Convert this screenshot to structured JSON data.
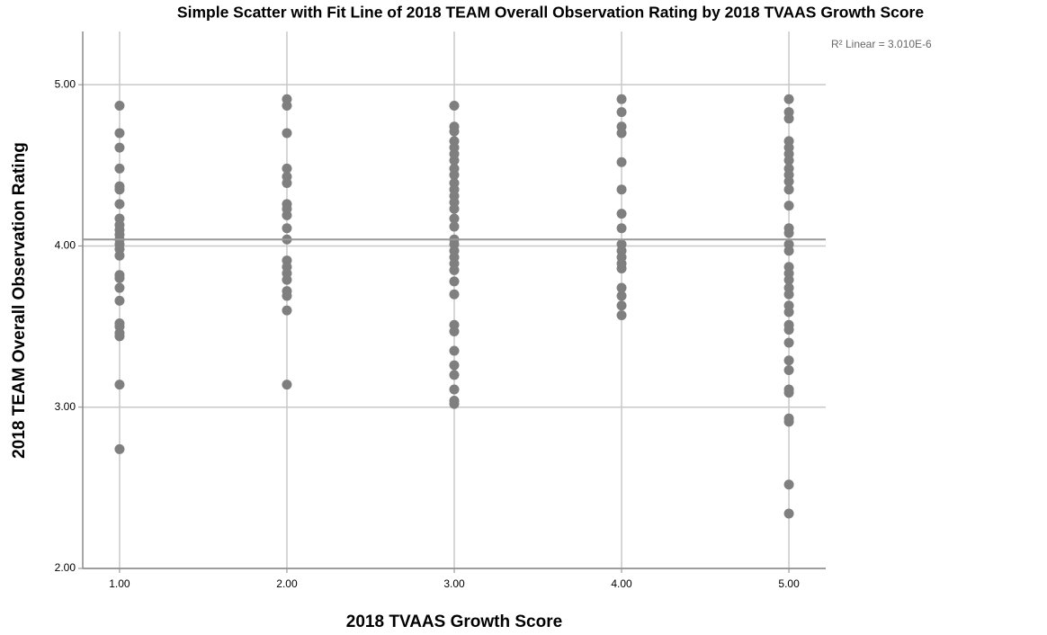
{
  "chart_data": {
    "type": "scatter",
    "title": "Simple Scatter with Fit Line of 2018 TEAM Overall Observation Rating by 2018 TVAAS Growth Score",
    "x_label": "2018 TVAAS Growth Score",
    "y_label": "2018 TEAM Overall Observation Rating",
    "annotation": "R² Linear = 3.010E-6",
    "color": "#7f7f7f",
    "grid": true,
    "xlim": [
      0.78,
      5.22
    ],
    "ylim": [
      2,
      5.33
    ],
    "xticks": [
      {
        "value": 1,
        "label": "1.00"
      },
      {
        "value": 2,
        "label": "2.00"
      },
      {
        "value": 3,
        "label": "3.00"
      },
      {
        "value": 4,
        "label": "4.00"
      },
      {
        "value": 5,
        "label": "5.00"
      }
    ],
    "yticks": [
      {
        "value": 2,
        "label": "2.00"
      },
      {
        "value": 3,
        "label": "3.00"
      },
      {
        "value": 4,
        "label": "4.00"
      },
      {
        "value": 5,
        "label": "5.00"
      }
    ],
    "fit_line": {
      "x": [
        0.78,
        5.22
      ],
      "y": [
        4.04,
        4.04
      ]
    },
    "x": [
      1,
      1,
      1,
      1,
      1,
      1,
      1,
      1,
      1,
      1,
      1,
      1,
      1,
      1,
      1,
      1,
      1,
      1,
      1,
      1,
      1,
      1,
      1,
      1,
      1,
      2,
      2,
      2,
      2,
      2,
      2,
      2,
      2,
      2,
      2,
      2,
      2,
      2,
      2,
      2,
      2,
      2,
      2,
      2,
      3,
      3,
      3,
      3,
      3,
      3,
      3,
      3,
      3,
      3,
      3,
      3,
      3,
      3,
      3,
      3,
      3,
      3,
      3,
      3,
      3,
      3,
      3,
      3,
      3,
      3,
      3,
      3,
      3,
      3,
      3,
      3,
      4,
      4,
      4,
      4,
      4,
      4,
      4,
      4,
      4,
      4,
      4,
      4,
      4,
      4,
      4,
      4,
      4,
      5,
      5,
      5,
      5,
      5,
      5,
      5,
      5,
      5,
      5,
      5,
      5,
      5,
      5,
      5,
      5,
      5,
      5,
      5,
      5,
      5,
      5,
      5,
      5,
      5,
      5,
      5,
      5,
      5,
      5,
      5,
      5,
      5,
      5
    ],
    "y": [
      4.87,
      4.7,
      4.61,
      4.48,
      4.37,
      4.35,
      4.26,
      4.17,
      4.13,
      4.1,
      4.07,
      4.04,
      4.01,
      3.98,
      3.94,
      3.82,
      3.8,
      3.74,
      3.66,
      3.52,
      3.5,
      3.46,
      3.44,
      3.14,
      2.74,
      4.91,
      4.87,
      4.7,
      4.48,
      4.43,
      4.39,
      4.26,
      4.23,
      4.19,
      4.11,
      4.04,
      3.91,
      3.87,
      3.83,
      3.79,
      3.72,
      3.69,
      3.6,
      3.14,
      4.87,
      4.74,
      4.71,
      4.65,
      4.61,
      4.57,
      4.53,
      4.48,
      4.44,
      4.39,
      4.35,
      4.31,
      4.27,
      4.23,
      4.17,
      4.12,
      4.04,
      4.01,
      3.97,
      3.93,
      3.89,
      3.85,
      3.78,
      3.7,
      3.51,
      3.47,
      3.35,
      3.26,
      3.2,
      3.11,
      3.04,
      3.02,
      4.91,
      4.83,
      4.74,
      4.7,
      4.52,
      4.35,
      4.2,
      4.11,
      4.01,
      3.97,
      3.93,
      3.89,
      3.86,
      3.74,
      3.69,
      3.63,
      3.57,
      4.91,
      4.83,
      4.79,
      4.65,
      4.61,
      4.57,
      4.53,
      4.48,
      4.44,
      4.4,
      4.35,
      4.25,
      4.11,
      4.08,
      4.01,
      3.97,
      3.87,
      3.83,
      3.79,
      3.74,
      3.7,
      3.63,
      3.59,
      3.51,
      3.48,
      3.4,
      3.29,
      3.23,
      3.11,
      3.09,
      2.93,
      2.91,
      2.52,
      2.34
    ]
  }
}
